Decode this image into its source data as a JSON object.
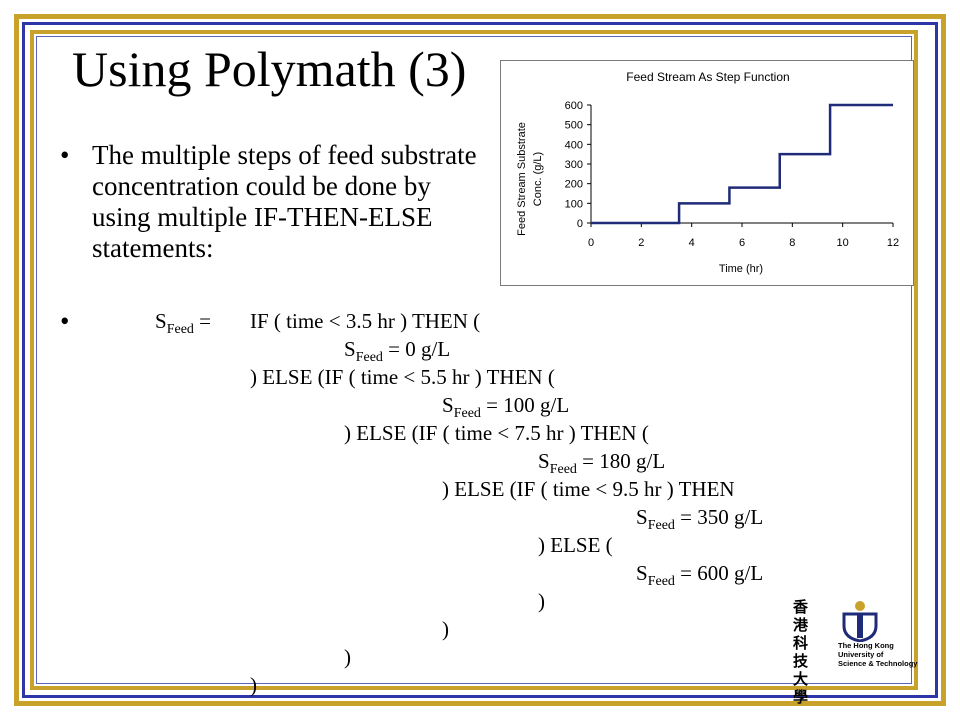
{
  "slide": {
    "title": "Using Polymath (3)",
    "bullet_char": "•",
    "bullet1": "The multiple steps of feed substrate concentration could be done by using multiple IF-THEN-ELSE statements:",
    "code": {
      "lhs_main": "S",
      "lhs_sub": "Feed",
      "lhs_eq": " =",
      "lines": [
        {
          "type": "text",
          "text": "IF ( time < 3.5 hr ) THEN ("
        },
        {
          "type": "assign",
          "main": "S",
          "sub": "Feed",
          "rest": " = 0 g/L"
        },
        {
          "type": "text",
          "text": ") ELSE (IF ( time < 5.5 hr ) THEN ("
        },
        {
          "type": "assign",
          "main": "S",
          "sub": "Feed",
          "rest": " = 100 g/L"
        },
        {
          "type": "text",
          "text": ") ELSE (IF ( time < 7.5 hr ) THEN ("
        },
        {
          "type": "assign",
          "main": "S",
          "sub": "Feed",
          "rest": " = 180 g/L"
        },
        {
          "type": "text",
          "text": ") ELSE (IF ( time < 9.5 hr ) THEN"
        },
        {
          "type": "assign",
          "main": "S",
          "sub": "Feed",
          "rest": " = 350 g/L"
        },
        {
          "type": "text",
          "text": ") ELSE ("
        },
        {
          "type": "assign",
          "main": "S",
          "sub": "Feed",
          "rest": " = 600 g/L"
        },
        {
          "type": "text",
          "text": ")"
        },
        {
          "type": "text",
          "text": ")"
        },
        {
          "type": "text",
          "text": ")"
        },
        {
          "type": "text",
          "text": ")"
        }
      ]
    }
  },
  "logo": {
    "cjk": "香港科技大學",
    "line1": "The Hong Kong",
    "line2": "University of",
    "line3": "Science & Technology"
  },
  "colors": {
    "frame_gold": "#c8a22a",
    "frame_blue": "#2e35a8",
    "series_line": "#1f2a78"
  },
  "chart_data": {
    "type": "line",
    "title": "Feed Stream As Step Function",
    "xlabel": "Time (hr)",
    "ylabel_line1": "Feed Stream Substrate",
    "ylabel_line2": "Conc. (g/L)",
    "xlim": [
      0,
      12
    ],
    "ylim": [
      0,
      600
    ],
    "xticks": [
      0,
      2,
      4,
      6,
      8,
      10,
      12
    ],
    "yticks": [
      0,
      100,
      200,
      300,
      400,
      500,
      600
    ],
    "grid": false,
    "series": [
      {
        "x": [
          0,
          3.5,
          3.5,
          5.5,
          5.5,
          7.5,
          7.5,
          9.5,
          9.5,
          12
        ],
        "y": [
          0,
          0,
          100,
          100,
          180,
          180,
          350,
          350,
          600,
          600
        ]
      }
    ]
  }
}
